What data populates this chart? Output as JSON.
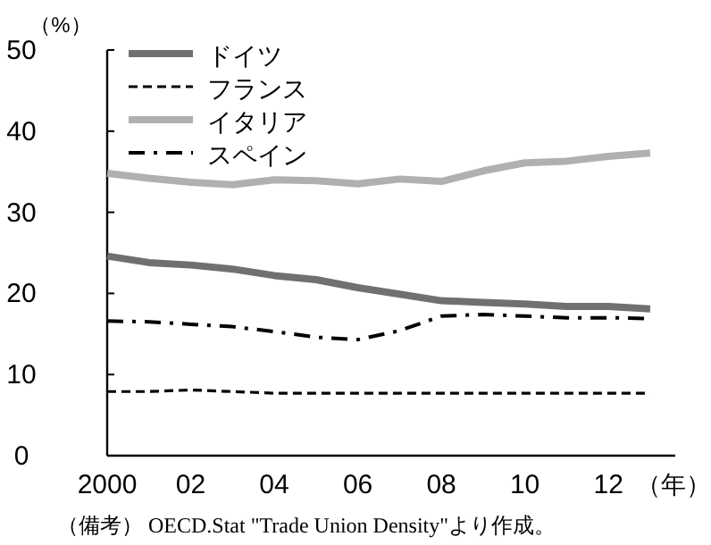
{
  "chart_data": {
    "type": "line",
    "ylabel": "（%）",
    "xlabel": "（年）",
    "x": [
      2000,
      2001,
      2002,
      2003,
      2004,
      2005,
      2006,
      2007,
      2008,
      2009,
      2010,
      2011,
      2012,
      2013
    ],
    "xlim": [
      2000,
      2013.6
    ],
    "xticks": [
      {
        "value": 2000,
        "label": "2000"
      },
      {
        "value": 2002,
        "label": "02"
      },
      {
        "value": 2004,
        "label": "04"
      },
      {
        "value": 2006,
        "label": "06"
      },
      {
        "value": 2008,
        "label": "08"
      },
      {
        "value": 2010,
        "label": "10"
      },
      {
        "value": 2012,
        "label": "12"
      }
    ],
    "ylim": [
      0,
      50
    ],
    "yticks": [
      0,
      10,
      20,
      30,
      40,
      50
    ],
    "legend": "top left",
    "grid": false,
    "series": [
      {
        "name": "ドイツ",
        "color": "#707070",
        "line_style": "solid",
        "values": [
          24.6,
          23.8,
          23.5,
          23.0,
          22.2,
          21.7,
          20.7,
          19.9,
          19.1,
          18.9,
          18.7,
          18.4,
          18.4,
          18.1
        ]
      },
      {
        "name": "フランス",
        "color": "#000000",
        "line_style": "dashed",
        "values": [
          7.9,
          7.9,
          8.1,
          7.9,
          7.7,
          7.7,
          7.7,
          7.7,
          7.7,
          7.7,
          7.7,
          7.7,
          7.7,
          7.7
        ]
      },
      {
        "name": "イタリア",
        "color": "#b0b0b0",
        "line_style": "solid",
        "values": [
          34.8,
          34.2,
          33.7,
          33.4,
          34.0,
          33.9,
          33.5,
          34.1,
          33.8,
          35.1,
          36.1,
          36.3,
          36.9,
          37.3
        ]
      },
      {
        "name": "スペイン",
        "color": "#000000",
        "line_style": "dashdot",
        "values": [
          16.6,
          16.5,
          16.2,
          15.9,
          15.3,
          14.6,
          14.3,
          15.4,
          17.2,
          17.4,
          17.2,
          17.0,
          17.0,
          16.9
        ]
      }
    ],
    "annotations": [
      "（備考） OECD.Stat \"Trade Union Density\"より作成。"
    ]
  }
}
